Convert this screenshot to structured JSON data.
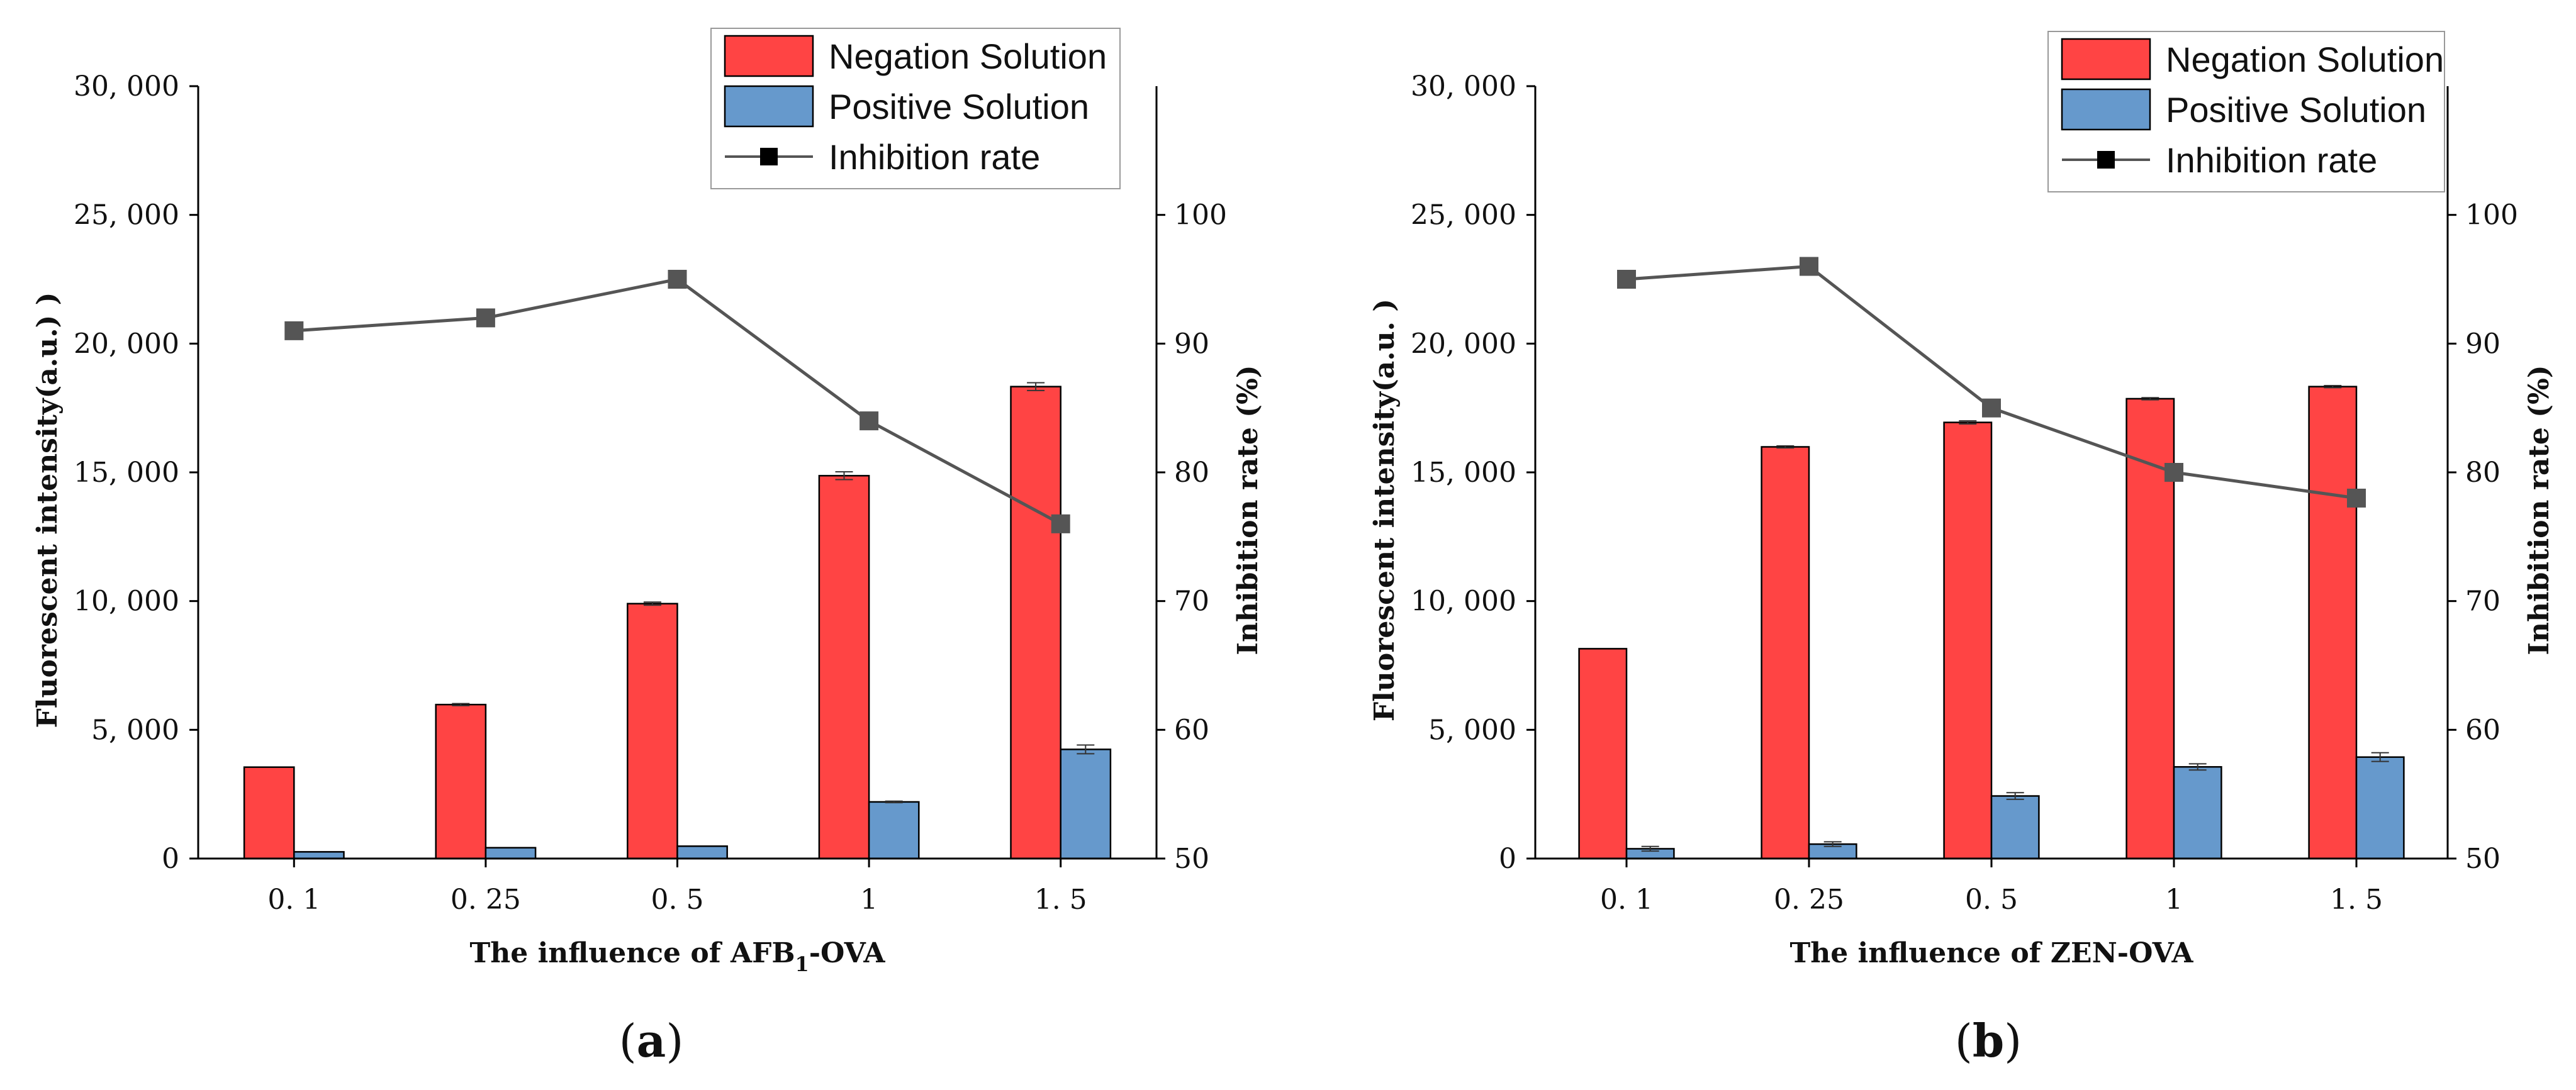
{
  "chart_data": [
    {
      "type": "bar",
      "panel_label": "a",
      "categories": [
        "0. 1",
        "0. 25",
        "0. 5",
        "1",
        "1. 5"
      ],
      "xlabel": {
        "prefix": "The influence of  AFB",
        "sub": "1",
        "suffix": "-OVA"
      },
      "ylabel": "Fluorescent intensity(a.u.) )",
      "y2label": "Inhibition rate (%)",
      "ylim": [
        0,
        30000
      ],
      "y_ticks": [
        0,
        5000,
        10000,
        15000,
        20000,
        25000,
        30000
      ],
      "y_tick_labels": [
        "0",
        "5, 000",
        "10, 000",
        "15, 000",
        "20, 000",
        "25, 000",
        "30, 000"
      ],
      "y2lim": [
        50,
        110
      ],
      "y2_ticks": [
        50,
        60,
        70,
        80,
        90,
        100
      ],
      "y2_tick_labels": [
        "50",
        "60",
        "70",
        "80",
        "90",
        "100"
      ],
      "series": [
        {
          "name": "Negation Solution",
          "kind": "bar",
          "axis": "left",
          "color": "#ff4444",
          "values": [
            3550,
            5980,
            9900,
            14870,
            18330
          ],
          "errors": [
            0,
            40,
            60,
            150,
            150
          ]
        },
        {
          "name": "Positive Solution",
          "kind": "bar",
          "axis": "left",
          "color": "#6699cc",
          "values": [
            260,
            420,
            480,
            2200,
            4240
          ],
          "errors": [
            0,
            0,
            0,
            30,
            170
          ]
        },
        {
          "name": "Inhibition rate",
          "kind": "line",
          "axis": "right",
          "color": "#555555",
          "values": [
            91,
            92,
            95,
            84,
            76
          ]
        }
      ],
      "legend_position": "top-right"
    },
    {
      "type": "bar",
      "panel_label": "b",
      "categories": [
        "0. 1",
        "0. 25",
        "0. 5",
        "1",
        "1. 5"
      ],
      "xlabel": {
        "prefix": "The influence of  ZEN-OVA",
        "sub": "",
        "suffix": ""
      },
      "ylabel": "Fluorescent intensity(a.u. )",
      "y2label": "Inhibition rate (%)",
      "ylim": [
        0,
        30000
      ],
      "y_ticks": [
        0,
        5000,
        10000,
        15000,
        20000,
        25000,
        30000
      ],
      "y_tick_labels": [
        "0",
        "5, 000",
        "10, 000",
        "15, 000",
        "20, 000",
        "25, 000",
        "30, 000"
      ],
      "y2lim": [
        50,
        110
      ],
      "y2_ticks": [
        50,
        60,
        70,
        80,
        90,
        100
      ],
      "y2_tick_labels": [
        "50",
        "60",
        "70",
        "80",
        "90",
        "100"
      ],
      "series": [
        {
          "name": "Negation Solution",
          "kind": "bar",
          "axis": "left",
          "color": "#ff4444",
          "values": [
            8150,
            15990,
            16940,
            17860,
            18330
          ],
          "errors": [
            0,
            40,
            60,
            40,
            40
          ]
        },
        {
          "name": "Positive Solution",
          "kind": "bar",
          "axis": "left",
          "color": "#6699cc",
          "values": [
            380,
            560,
            2430,
            3560,
            3940
          ],
          "errors": [
            90,
            90,
            130,
            120,
            170
          ]
        },
        {
          "name": "Inhibition rate",
          "kind": "line",
          "axis": "right",
          "color": "#555555",
          "values": [
            95,
            96,
            85,
            80,
            78
          ]
        }
      ],
      "legend_position": "top-right"
    }
  ]
}
